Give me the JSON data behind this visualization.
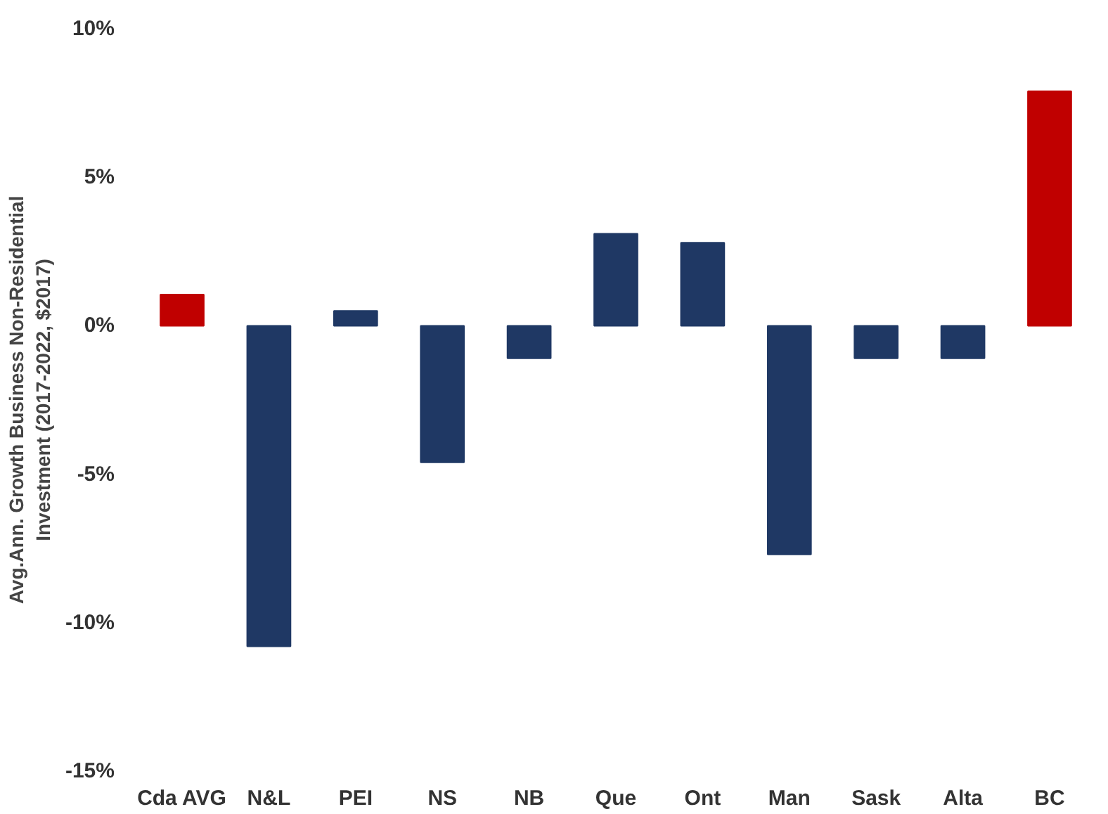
{
  "chart_data": {
    "type": "bar",
    "ylabel": "Avg.Ann. Growth Business Non-Residential\nInvestment (2017-2022, $2017)",
    "categories": [
      "Cda AVG",
      "N&L",
      "PEI",
      "NS",
      "NB",
      "Que",
      "Ont",
      "Man",
      "Sask",
      "Alta",
      "BC"
    ],
    "values": [
      1.05,
      -10.8,
      0.5,
      -4.6,
      -1.1,
      3.1,
      2.8,
      -7.7,
      -1.1,
      -1.1,
      7.9
    ],
    "colors": [
      "#c00000",
      "#1f3864",
      "#1f3864",
      "#1f3864",
      "#1f3864",
      "#1f3864",
      "#1f3864",
      "#1f3864",
      "#1f3864",
      "#1f3864",
      "#c00000"
    ],
    "ylim": [
      -15,
      10
    ],
    "yticks": [
      {
        "value": -15,
        "label": "-15%"
      },
      {
        "value": -10,
        "label": "-10%"
      },
      {
        "value": -5,
        "label": "-5%"
      },
      {
        "value": 0,
        "label": "0%"
      },
      {
        "value": 5,
        "label": "5%"
      },
      {
        "value": 10,
        "label": "10%"
      }
    ],
    "grid": false
  }
}
